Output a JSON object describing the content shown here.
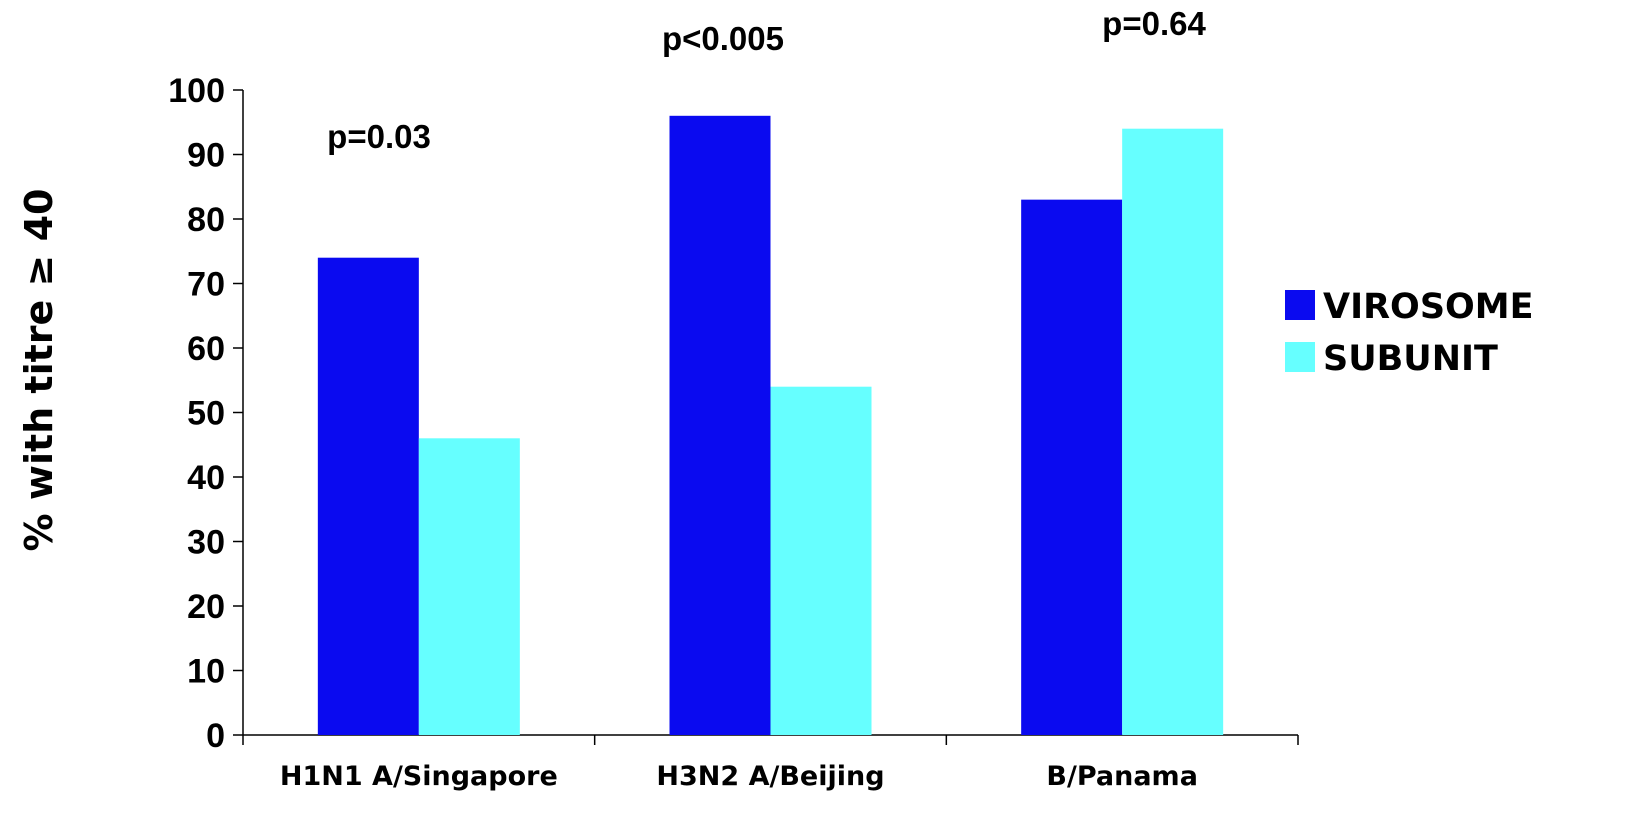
{
  "chart_data": {
    "type": "bar",
    "title": "",
    "xlabel": "",
    "ylabel": "% with titre ≥ 40",
    "ylim": [
      0,
      100
    ],
    "yticks": [
      0,
      10,
      20,
      30,
      40,
      50,
      60,
      70,
      80,
      90,
      100
    ],
    "categories": [
      "H1N1 A/Singapore",
      "H3N2 A/Beijing",
      "B/Panama"
    ],
    "series": [
      {
        "name": "VIROSOME",
        "color": "#0A0AF0",
        "values": [
          74,
          96,
          83
        ]
      },
      {
        "name": "SUBUNIT",
        "color": "#66FFFF",
        "values": [
          46,
          54,
          94
        ]
      }
    ],
    "annotations": [
      "p=0.03",
      "p<0.005",
      "p=0.64"
    ],
    "grid": false,
    "legend_position": "right"
  }
}
